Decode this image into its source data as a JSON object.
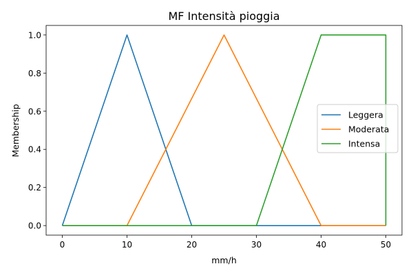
{
  "chart_data": {
    "type": "line",
    "title": "MF Intensità pioggia",
    "xlabel": "mm/h",
    "ylabel": "Membership",
    "xlim": [
      -2.5,
      52.5
    ],
    "ylim": [
      -0.05,
      1.05
    ],
    "xticks": [
      0,
      10,
      20,
      30,
      40,
      50
    ],
    "yticks": [
      0.0,
      0.2,
      0.4,
      0.6,
      0.8,
      1.0
    ],
    "xtick_labels": [
      "0",
      "10",
      "20",
      "30",
      "40",
      "50"
    ],
    "ytick_labels": [
      "0.0",
      "0.2",
      "0.4",
      "0.6",
      "0.8",
      "1.0"
    ],
    "grid": false,
    "legend_position": "center-right",
    "series": [
      {
        "name": "Leggera",
        "color": "#1f77b4",
        "x": [
          0,
          10,
          20,
          50
        ],
        "y": [
          0,
          1,
          0,
          0
        ]
      },
      {
        "name": "Moderata",
        "color": "#ff7f0e",
        "x": [
          0,
          10,
          25,
          40,
          50
        ],
        "y": [
          0,
          0,
          1,
          0,
          0
        ]
      },
      {
        "name": "Intensa",
        "color": "#2ca02c",
        "x": [
          0,
          30,
          40,
          50,
          50
        ],
        "y": [
          0,
          0,
          1,
          1,
          0
        ]
      }
    ]
  }
}
